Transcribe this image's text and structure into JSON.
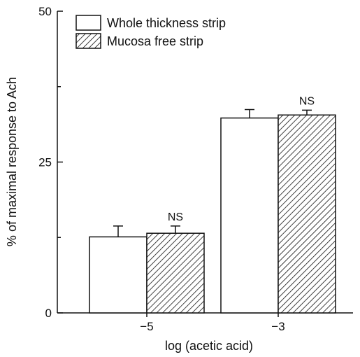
{
  "chart_data": {
    "type": "bar",
    "xlabel": "log (acetic acid)",
    "ylabel": "% of maximal response to Ach",
    "ylim": [
      0,
      50
    ],
    "y_ticks": [
      "0",
      "25",
      "50"
    ],
    "categories": [
      "−5",
      "−3"
    ],
    "series": [
      {
        "name": "Whole thickness strip",
        "fill": "open",
        "values": [
          12.6,
          32.3
        ],
        "errors": [
          1.8,
          1.4
        ]
      },
      {
        "name": "Mucosa free strip",
        "fill": "hatched",
        "values": [
          13.2,
          32.8
        ],
        "errors": [
          1.2,
          0.8
        ]
      }
    ],
    "annotations": [
      "NS",
      "NS"
    ],
    "legend_position": "top-left"
  },
  "colors": {
    "ink": "#111111",
    "background": "#ffffff"
  }
}
